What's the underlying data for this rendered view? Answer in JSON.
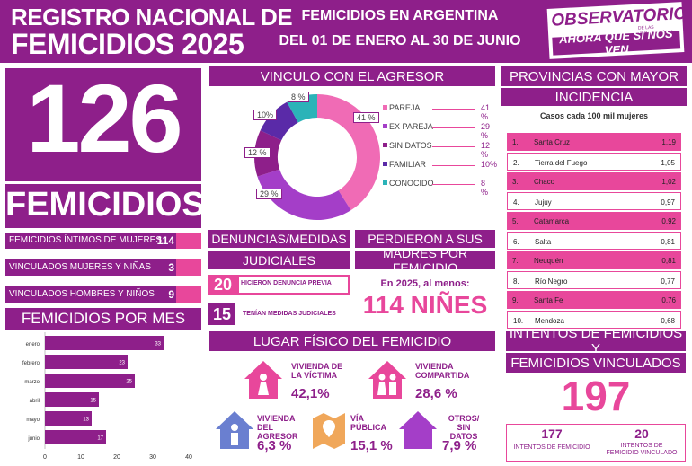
{
  "header": {
    "title_line1": "REGISTRO NACIONAL DE",
    "title_line2": "FEMICIDIOS 2025",
    "subtitle_line1": "FEMICIDIOS EN ARGENTINA",
    "subtitle_line2": "DEL 01 DE ENERO AL 30 DE JUNIO",
    "logo_line1": "OBSERVATORIO",
    "logo_tagline": "DE LAS VIOLENCIAS DE GÉNERO",
    "logo_line2": "AHORA QUE SÍ NOS VEN"
  },
  "total": {
    "number": "126",
    "label": "FEMICIDIOS"
  },
  "categories": [
    {
      "label": "FEMICIDIOS ÍNTIMOS DE MUJERES",
      "value": "114"
    },
    {
      "label": "VINCULADOS MUJERES Y NIÑAS",
      "value": "3"
    },
    {
      "label": "VINCULADOS HOMBRES Y NIÑOS",
      "value": "9"
    }
  ],
  "por_mes_title": "FEMICIDIOS POR MES",
  "vinculo": {
    "title": "VINCULO CON EL AGRESOR",
    "legend": [
      {
        "label": "PAREJA",
        "pct": "41 %",
        "color": "#f06bb5"
      },
      {
        "label": "EX PAREJA",
        "pct": "29 %",
        "color": "#a43ec8"
      },
      {
        "label": "SIN DATOS",
        "pct": "12 %",
        "color": "#8e1f8a"
      },
      {
        "label": "FAMILIAR",
        "pct": "10%",
        "color": "#5a2aa8"
      },
      {
        "label": "CONOCIDO",
        "pct": "8 %",
        "color": "#2bb3b8"
      }
    ],
    "slice_labels": [
      "41 %",
      "29 %",
      "12 %",
      "10%",
      "8 %"
    ]
  },
  "denuncias": {
    "title1": "DENUNCIAS/MEDIDAS",
    "title2": "JUDICIALES",
    "stat1_num": "20",
    "stat1_label": "HICIERON DENUNCIA PREVIA",
    "stat2_num": "15",
    "stat2_label": "TENÍAN MEDIDAS JUDICIALES"
  },
  "madres": {
    "title1": "PERDIERON A SUS",
    "title2": "MADRES POR FEMICIDIO",
    "text": "En 2025, al menos:",
    "number": "114 NIÑES"
  },
  "lugar": {
    "title": "LUGAR FÍSICO DEL FEMICIDIO",
    "items": [
      {
        "label": "VIVIENDA DE LA VÍCTIMA",
        "pct": "42,1%"
      },
      {
        "label": "VIVIENDA COMPARTIDA",
        "pct": "28,6 %"
      },
      {
        "label": "VIVIENDA DEL AGRESOR",
        "pct": "6,3 %"
      },
      {
        "label": "VÍA PÚBLICA",
        "pct": "15,1 %"
      },
      {
        "label": "OTROS/ SIN DATOS",
        "pct": "7,9 %"
      }
    ]
  },
  "provincias": {
    "title1": "PROVINCIAS CON MAYOR",
    "title2": "INCIDENCIA",
    "subtitle": "Casos cada 100 mil mujeres",
    "rows": [
      {
        "rank": "1.",
        "name": "Santa Cruz",
        "value": "1,19"
      },
      {
        "rank": "2.",
        "name": "Tierra del Fuego",
        "value": "1,05"
      },
      {
        "rank": "3.",
        "name": "Chaco",
        "value": "1,02"
      },
      {
        "rank": "4.",
        "name": "Jujuy",
        "value": "0,97"
      },
      {
        "rank": "5.",
        "name": "Catamarca",
        "value": "0,92"
      },
      {
        "rank": "6.",
        "name": "Salta",
        "value": "0,81"
      },
      {
        "rank": "7.",
        "name": "Neuquén",
        "value": "0,81"
      },
      {
        "rank": "8.",
        "name": "Río Negro",
        "value": "0,77"
      },
      {
        "rank": "9.",
        "name": "Santa Fe",
        "value": "0,76"
      },
      {
        "rank": "10.",
        "name": "Mendoza",
        "value": "0,68"
      }
    ]
  },
  "intentos": {
    "title1": "INTENTOS DE FEMICIDIOS Y",
    "title2": "FEMICIDIOS VINCULADOS",
    "total": "197",
    "a_num": "177",
    "a_label": "INTENTOS DE FEMICIDIO",
    "b_num": "20",
    "b_label": "INTENTOS DE FEMICIDIO VINCULADO"
  },
  "chart_data": [
    {
      "type": "bar",
      "orientation": "horizontal",
      "title": "FEMICIDIOS POR MES",
      "categories": [
        "enero",
        "febrero",
        "marzo",
        "abril",
        "mayo",
        "junio"
      ],
      "values": [
        33,
        23,
        25,
        15,
        13,
        17
      ],
      "xlim": [
        0,
        40
      ],
      "xticks": [
        "0",
        "10",
        "20",
        "30",
        "40"
      ],
      "color": "#8e1f8a"
    },
    {
      "type": "pie",
      "title": "VINCULO CON EL AGRESOR",
      "donut": true,
      "categories": [
        "PAREJA",
        "EX PAREJA",
        "SIN DATOS",
        "FAMILIAR",
        "CONOCIDO"
      ],
      "values": [
        41,
        29,
        12,
        10,
        8
      ]
    }
  ]
}
